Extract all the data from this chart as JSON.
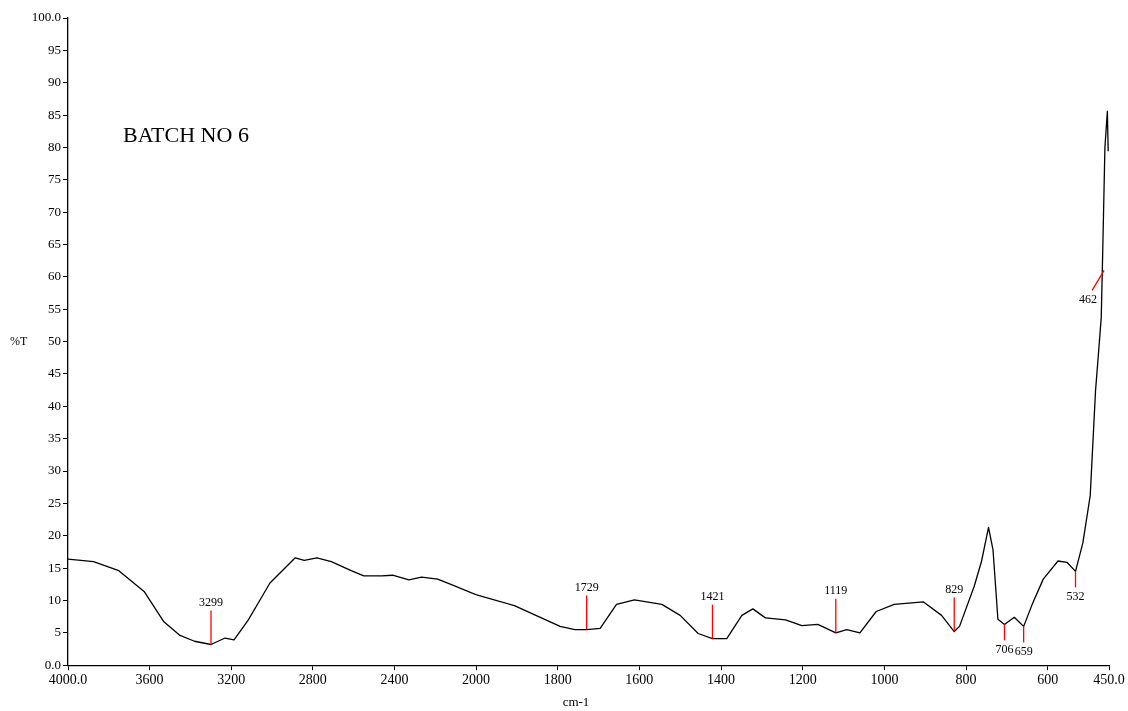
{
  "chart_data": [
    {
      "type": "line",
      "ylabel": "%T",
      "xlim": [
        4000,
        2000
      ],
      "xticks": [
        {
          "value": 4000,
          "label": "4000.0"
        },
        3600,
        3200,
        2800,
        2400,
        2000
      ],
      "ylim": [
        0,
        100
      ],
      "yticks": [
        {
          "value": 0,
          "label": "0.0"
        },
        5,
        10,
        15,
        20,
        25,
        30,
        35,
        40,
        45,
        50,
        55,
        60,
        65,
        70,
        75,
        80,
        85,
        90,
        95,
        {
          "value": 100,
          "label": "100.0"
        }
      ],
      "grid": false,
      "marker": "none",
      "line_style": "solid",
      "series": [
        {
          "color": "#000000",
          "x": [
            4000,
            3875,
            3751,
            3627,
            3530,
            3451,
            3380,
            3299,
            3230,
            3186,
            3116,
            3010,
            2886,
            2842,
            2780,
            2709,
            2612,
            2550,
            2462,
            2409,
            2329,
            2267,
            2188,
            2108,
            2000
          ],
          "values": [
            16.4,
            16.0,
            14.6,
            11.4,
            6.7,
            4.6,
            3.7,
            3.2,
            4.2,
            3.9,
            7.0,
            12.7,
            16.6,
            16.2,
            16.6,
            16.0,
            14.6,
            13.8,
            13.8,
            13.9,
            13.2,
            13.6,
            13.3,
            12.3,
            10.9
          ]
        }
      ],
      "annotations": [
        "BATCH NO 6",
        {
          "text": "3299",
          "x": 3299,
          "y": 3.2
        }
      ]
    },
    {
      "type": "line",
      "xlabel": "cm-1",
      "xlim": [
        2000,
        450
      ],
      "xticks": [
        1800,
        1600,
        1400,
        1200,
        1000,
        800,
        600,
        {
          "value": 450,
          "label": "450.0"
        }
      ],
      "ylim": [
        0,
        100
      ],
      "tick_labels": "x",
      "grid": false,
      "marker": "none",
      "line_style": "solid",
      "series": [
        {
          "color": "#000000",
          "x": [
            2000,
            1994,
            1906,
            1794,
            1758,
            1729,
            1696,
            1656,
            1612,
            1545,
            1500,
            1456,
            1421,
            1386,
            1349,
            1322,
            1291,
            1242,
            1202,
            1163,
            1119,
            1092,
            1060,
            1020,
            976,
            905,
            860,
            829,
            816,
            780,
            762,
            745,
            734,
            722,
            706,
            682,
            659,
            638,
            611,
            575,
            553,
            532,
            514,
            496,
            483,
            477,
            469,
            466,
            460,
            454,
            452
          ],
          "values": [
            10.9,
            10.8,
            9.2,
            6.0,
            5.5,
            5.5,
            5.7,
            9.4,
            10.1,
            9.4,
            7.7,
            4.9,
            4.1,
            4.1,
            7.7,
            8.7,
            7.3,
            7.0,
            6.1,
            6.3,
            5.0,
            5.5,
            5.0,
            8.3,
            9.4,
            9.8,
            7.7,
            5.2,
            6.0,
            12.2,
            16.1,
            21.3,
            17.8,
            7.1,
            6.3,
            7.4,
            6.0,
            9.4,
            13.3,
            16.1,
            15.9,
            14.5,
            18.9,
            26.2,
            42.4,
            47.2,
            53.7,
            62.1,
            80.0,
            85.6,
            79.4
          ]
        }
      ],
      "annotations": [
        {
          "text": "1729",
          "x": 1729,
          "y": 5.5
        },
        {
          "text": "1421",
          "x": 1421,
          "y": 4.1
        },
        {
          "text": "1119",
          "x": 1119,
          "y": 5.0
        },
        {
          "text": "829",
          "x": 829,
          "y": 5.2
        },
        {
          "text": "706",
          "x": 706,
          "y": 6.3
        },
        {
          "text": "659",
          "x": 659,
          "y": 6.0
        },
        {
          "text": "532",
          "x": 532,
          "y": 14.5
        },
        {
          "text": "462",
          "x": 462,
          "y": 61
        }
      ]
    }
  ]
}
